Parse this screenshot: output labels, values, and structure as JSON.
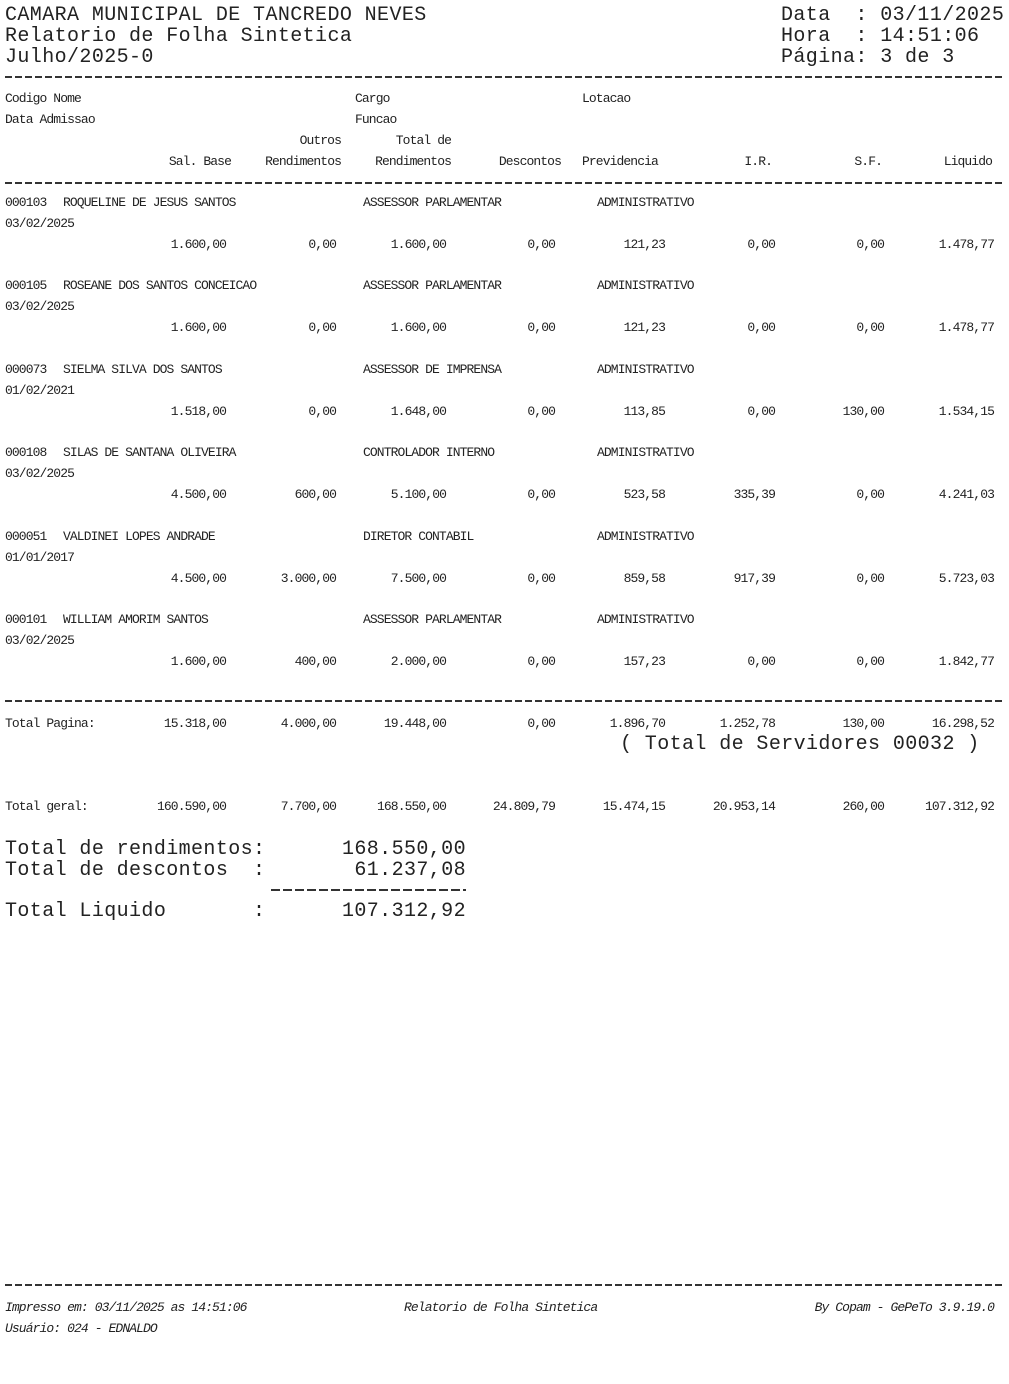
{
  "header": {
    "org": "CAMARA MUNICIPAL DE TANCREDO NEVES",
    "report_title": "Relatorio de Folha Sintetica",
    "period": "Julho/2025-0",
    "date_line": "Data  : 03/11/2025",
    "time_line": "Hora  : 14:51:06",
    "page_line": "Página: 3 de 3"
  },
  "columns": {
    "codigo_nome": "Codigo Nome",
    "data_admissao": "Data Admissao",
    "cargo": "Cargo",
    "funcao": "Funcao",
    "lotacao": "Lotacao",
    "outros_top": "Outros",
    "total_top": "Total de",
    "values": [
      "Sal. Base",
      "Rendimentos",
      "Rendimentos",
      "Descontos",
      "Previdencia",
      "I.R.",
      "S.F.",
      "Liquido"
    ]
  },
  "records": [
    {
      "codigo": "000103",
      "nome": "ROQUELINE DE JESUS SANTOS",
      "cargo": "ASSESSOR PARLAMENTAR",
      "lotacao": "ADMINISTRATIVO",
      "admissao": "03/02/2025",
      "values": [
        "1.600,00",
        "0,00",
        "1.600,00",
        "0,00",
        "121,23",
        "0,00",
        "0,00",
        "1.478,77"
      ]
    },
    {
      "codigo": "000105",
      "nome": "ROSEANE DOS SANTOS CONCEICAO",
      "cargo": "ASSESSOR PARLAMENTAR",
      "lotacao": "ADMINISTRATIVO",
      "admissao": "03/02/2025",
      "values": [
        "1.600,00",
        "0,00",
        "1.600,00",
        "0,00",
        "121,23",
        "0,00",
        "0,00",
        "1.478,77"
      ]
    },
    {
      "codigo": "000073",
      "nome": "SIELMA SILVA DOS SANTOS",
      "cargo": "ASSESSOR DE IMPRENSA",
      "lotacao": "ADMINISTRATIVO",
      "admissao": "01/02/2021",
      "values": [
        "1.518,00",
        "0,00",
        "1.648,00",
        "0,00",
        "113,85",
        "0,00",
        "130,00",
        "1.534,15"
      ]
    },
    {
      "codigo": "000108",
      "nome": "SILAS DE SANTANA OLIVEIRA",
      "cargo": "CONTROLADOR INTERNO",
      "lotacao": "ADMINISTRATIVO",
      "admissao": "03/02/2025",
      "values": [
        "4.500,00",
        "600,00",
        "5.100,00",
        "0,00",
        "523,58",
        "335,39",
        "0,00",
        "4.241,03"
      ]
    },
    {
      "codigo": "000051",
      "nome": "VALDINEI LOPES ANDRADE",
      "cargo": "DIRETOR CONTABIL",
      "lotacao": "ADMINISTRATIVO",
      "admissao": "01/01/2017",
      "values": [
        "4.500,00",
        "3.000,00",
        "7.500,00",
        "0,00",
        "859,58",
        "917,39",
        "0,00",
        "5.723,03"
      ]
    },
    {
      "codigo": "000101",
      "nome": "WILLIAM AMORIM SANTOS",
      "cargo": "ASSESSOR PARLAMENTAR",
      "lotacao": "ADMINISTRATIVO",
      "admissao": "03/02/2025",
      "values": [
        "1.600,00",
        "400,00",
        "2.000,00",
        "0,00",
        "157,23",
        "0,00",
        "0,00",
        "1.842,77"
      ]
    }
  ],
  "total_pagina": {
    "label": "Total Pagina:",
    "values": [
      "15.318,00",
      "4.000,00",
      "19.448,00",
      "0,00",
      "1.896,70",
      "1.252,78",
      "130,00",
      "16.298,52"
    ]
  },
  "total_servidores": "( Total de Servidores 00032 )",
  "total_geral": {
    "label": "Total geral:",
    "values": [
      "160.590,00",
      "7.700,00",
      "168.550,00",
      "24.809,79",
      "15.474,15",
      "20.953,14",
      "260,00",
      "107.312,92"
    ]
  },
  "summary": {
    "rendimentos_label": "Total de rendimentos:",
    "rendimentos_value": "168.550,00",
    "descontos_label": "Total de descontos  :",
    "descontos_value": "61.237,08",
    "liquido_label": "Total Liquido       :",
    "liquido_value": "107.312,92"
  },
  "footer": {
    "printed": "Impresso em: 03/11/2025 as 14:51:06",
    "user": "Usuário: 024 - EDNALDO",
    "report": "Relatorio de Folha Sintetica",
    "by": "By Copam - GePeTo 3.9.19.0"
  }
}
